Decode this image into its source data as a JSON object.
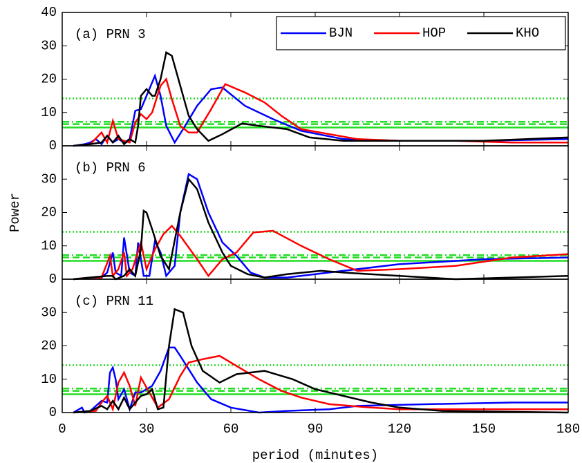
{
  "chart_data": {
    "type": "line",
    "xlabel": "period (minutes)",
    "ylabel": "Power",
    "xlim": [
      0,
      180
    ],
    "xticks": [
      0,
      30,
      60,
      90,
      120,
      150,
      180
    ],
    "legend": {
      "loc": "upper right"
    },
    "series": [
      {
        "name": "BJN",
        "color": "#0000ff"
      },
      {
        "name": "HOP",
        "color": "#ff0000"
      },
      {
        "name": "KHO",
        "color": "#000000"
      }
    ],
    "reference_color": "#22dd22",
    "panels": [
      {
        "label": "(a) PRN 3",
        "ylim": [
          0,
          40
        ],
        "yticks": [
          0,
          10,
          20,
          30,
          40
        ],
        "reference_lines": [
          {
            "value": 14.2,
            "style": "dotted"
          },
          {
            "value": 7.2,
            "style": "dashdot"
          },
          {
            "value": 6.5,
            "style": "dashed"
          },
          {
            "value": 5.5,
            "style": "solid"
          }
        ],
        "data": [
          {
            "x": [
              4,
              8,
              10,
              12,
              14,
              16,
              18,
              20,
              22,
              24,
              26,
              28,
              30,
              32,
              33,
              35,
              37,
              40,
              43,
              48,
              53,
              57,
              65,
              75,
              85,
              100,
              120,
              150,
              180
            ],
            "values": [
              0,
              0.5,
              1,
              2,
              0.5,
              3,
              1,
              2,
              1,
              2,
              10.5,
              11,
              15,
              19,
              21,
              15,
              6,
              1,
              5,
              12,
              17,
              17.5,
              12,
              8,
              4.5,
              2,
              1.5,
              1.5,
              2
            ]
          },
          {
            "x": [
              4,
              10,
              14,
              16,
              18,
              20,
              24,
              26,
              28,
              30,
              32,
              35,
              37,
              39,
              42,
              45,
              48,
              53,
              58,
              65,
              72,
              78,
              85,
              95,
              105,
              120,
              140,
              160,
              180
            ],
            "values": [
              0,
              0.5,
              4,
              1,
              7.5,
              2,
              1,
              7,
              9.5,
              8,
              10,
              18,
              20,
              14,
              6,
              4,
              4,
              11,
              18.5,
              16,
              13,
              9,
              5,
              3.5,
              2,
              1.5,
              1.5,
              1,
              1
            ]
          },
          {
            "x": [
              4,
              10,
              14,
              16,
              18,
              20,
              22,
              24,
              26,
              27,
              28,
              30,
              32,
              33,
              35,
              37,
              39,
              42,
              45,
              48,
              52,
              57,
              64,
              70,
              80,
              88,
              100,
              120,
              150,
              180
            ],
            "values": [
              0,
              0.5,
              1,
              3,
              1,
              3,
              0.5,
              2,
              1,
              6,
              15,
              17,
              15,
              15,
              20,
              28,
              27,
              18,
              9,
              5,
              1.5,
              3.5,
              6.7,
              6,
              5,
              2.5,
              1.5,
              1.5,
              1.5,
              2.5
            ]
          }
        ]
      },
      {
        "label": "(b) PRN 6",
        "ylim": [
          0,
          40
        ],
        "yticks": [
          0,
          10,
          20,
          30
        ],
        "reference_lines": [
          {
            "value": 14.2,
            "style": "dotted"
          },
          {
            "value": 7.2,
            "style": "dashdot"
          },
          {
            "value": 6.5,
            "style": "dashed"
          },
          {
            "value": 5.5,
            "style": "solid"
          }
        ],
        "data": [
          {
            "x": [
              4,
              10,
              14,
              16,
              18,
              19,
              21,
              22,
              24,
              26,
              27,
              29,
              31,
              33,
              35,
              37,
              40,
              42,
              45,
              48,
              52,
              57,
              62,
              67,
              72,
              80,
              100,
              120,
              150,
              180
            ],
            "values": [
              0,
              0.5,
              0.5,
              2,
              8,
              2,
              1,
              12.5,
              2,
              1,
              11,
              1,
              1,
              11.5,
              8,
              1,
              4,
              20,
              31.5,
              30,
              20,
              11,
              7,
              2,
              0.5,
              0.5,
              2.5,
              4.5,
              6,
              6.5
            ]
          },
          {
            "x": [
              4,
              10,
              14,
              17,
              18,
              20,
              22,
              23,
              25,
              28,
              30,
              33,
              36,
              39,
              42,
              48,
              52,
              57,
              62,
              68,
              75,
              85,
              95,
              105,
              120,
              140,
              160,
              180
            ],
            "values": [
              0,
              0.5,
              0.5,
              7,
              1,
              3,
              8,
              1,
              3,
              11,
              3,
              9,
              13.5,
              16,
              13,
              6,
              1,
              6,
              8,
              14,
              14.5,
              10,
              6,
              2.5,
              3,
              4,
              6.5,
              7.5
            ]
          },
          {
            "x": [
              4,
              10,
              16,
              18,
              19,
              22,
              24,
              26,
              28,
              29,
              30,
              32,
              35,
              38,
              42,
              45,
              48,
              52,
              57,
              60,
              66,
              72,
              80,
              92,
              100,
              120,
              140,
              160,
              180
            ],
            "values": [
              0,
              0.5,
              1,
              1,
              0,
              1,
              3,
              1,
              9,
              20.5,
              20,
              15,
              7,
              3,
              20,
              30,
              27,
              17,
              8,
              4,
              1.5,
              0.5,
              1.5,
              2.5,
              2,
              1,
              0,
              0.5,
              1
            ]
          }
        ]
      },
      {
        "label": "(c) PRN 11",
        "ylim": [
          0,
          40
        ],
        "yticks": [
          0,
          10,
          20,
          30
        ],
        "reference_lines": [
          {
            "value": 14.2,
            "style": "dotted"
          },
          {
            "value": 7.2,
            "style": "dashdot"
          },
          {
            "value": 6.5,
            "style": "dashed"
          },
          {
            "value": 5.5,
            "style": "solid"
          }
        ],
        "data": [
          {
            "x": [
              4,
              7,
              8,
              10,
              12,
              14,
              16,
              17,
              18,
              19,
              20,
              22,
              24,
              26,
              28,
              32,
              35,
              38,
              40,
              42,
              48,
              53,
              60,
              70,
              80,
              95,
              105,
              130,
              160,
              180
            ],
            "values": [
              0,
              1.5,
              0,
              0.5,
              2,
              3.5,
              3,
              12,
              13.5,
              10,
              4,
              7,
              1,
              6,
              6,
              8,
              12.5,
              19.5,
              19.5,
              17,
              9,
              4,
              1.5,
              0,
              0.5,
              1,
              2,
              2.5,
              3,
              3
            ]
          },
          {
            "x": [
              4,
              12,
              14,
              16,
              18,
              20,
              22,
              24,
              26,
              28,
              30,
              34,
              38,
              42,
              45,
              50,
              56,
              62,
              70,
              78,
              85,
              95,
              110,
              120,
              140,
              180
            ],
            "values": [
              0,
              0.5,
              3,
              5,
              1,
              9,
              12,
              8,
              2,
              10.5,
              7.5,
              1.5,
              4,
              11,
              15,
              16,
              17,
              14,
              10,
              6.5,
              4.5,
              2.5,
              1.5,
              1,
              1,
              1
            ]
          },
          {
            "x": [
              4,
              10,
              14,
              16,
              18,
              20,
              22,
              24,
              26,
              28,
              30,
              32,
              34,
              36,
              38,
              40,
              43,
              46,
              50,
              56,
              62,
              72,
              82,
              90,
              100,
              110,
              120,
              135,
              180
            ],
            "values": [
              0,
              0.5,
              2,
              1,
              3.5,
              1,
              4.5,
              1,
              3,
              5,
              5.5,
              7,
              1,
              1.5,
              20,
              31,
              30,
              20,
              12.5,
              9,
              11.5,
              12.5,
              10,
              7,
              5,
              3,
              1.5,
              0.5,
              0
            ]
          }
        ]
      }
    ]
  }
}
